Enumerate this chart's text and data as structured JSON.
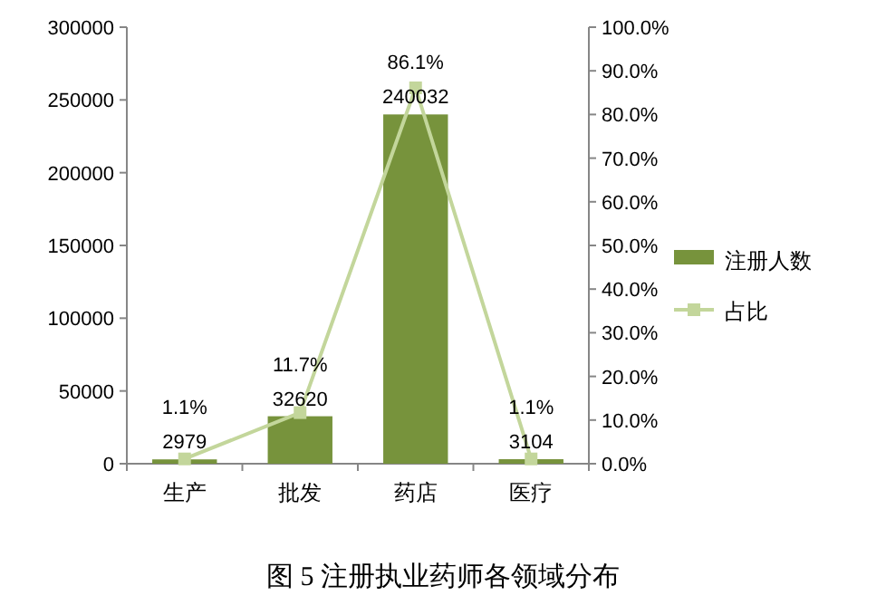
{
  "chart_data": {
    "type": "bar",
    "title": "图 5 注册执业药师各领域分布",
    "categories": [
      "生产",
      "批发",
      "药店",
      "医疗"
    ],
    "series": [
      {
        "name": "注册人数",
        "color": "#77933c",
        "values": [
          2979,
          32620,
          240032,
          3104
        ],
        "value_labels": [
          "2979",
          "32620",
          "240032",
          "3104"
        ]
      },
      {
        "name": "占比",
        "type": "line",
        "axis": "y2",
        "color": "#c3d69b",
        "marker": "square",
        "values": [
          1.1,
          11.7,
          86.1,
          1.1
        ],
        "value_labels": [
          "1.1%",
          "11.7%",
          "86.1%",
          "1.1%"
        ]
      }
    ],
    "ylim": [
      0,
      300000
    ],
    "yticks": [
      0,
      50000,
      100000,
      150000,
      200000,
      250000,
      300000
    ],
    "y2lim": [
      0,
      100
    ],
    "y2ticks": [
      {
        "value": 0,
        "label": "0.0%"
      },
      {
        "value": 10,
        "label": "10.0%"
      },
      {
        "value": 20,
        "label": "20.0%"
      },
      {
        "value": 30,
        "label": "30.0%"
      },
      {
        "value": 40,
        "label": "40.0%"
      },
      {
        "value": 50,
        "label": "50.0%"
      },
      {
        "value": 60,
        "label": "60.0%"
      },
      {
        "value": 70,
        "label": "70.0%"
      },
      {
        "value": 80,
        "label": "80.0%"
      },
      {
        "value": 90,
        "label": "90.0%"
      },
      {
        "value": 100,
        "label": "100.0%"
      }
    ],
    "grid": false,
    "legend": "right"
  }
}
